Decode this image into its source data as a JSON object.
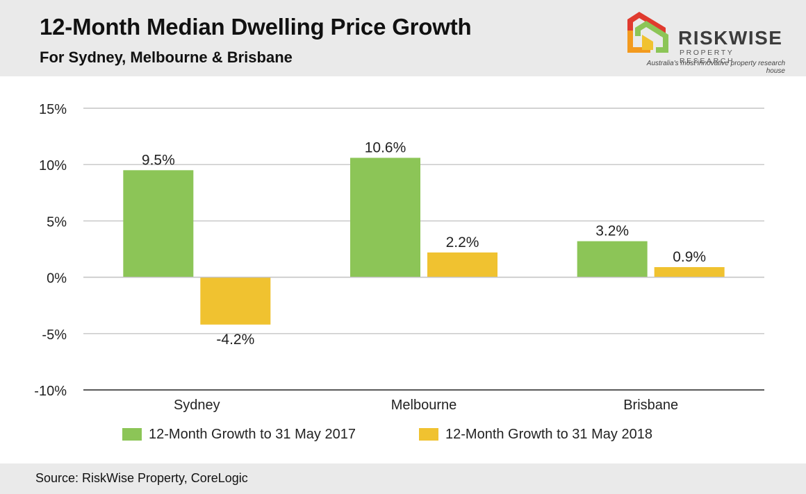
{
  "header": {
    "title": "12-Month Median Dwelling Price Growth",
    "subtitle": "For Sydney, Melbourne & Brisbane"
  },
  "logo": {
    "name": "RISKWISE",
    "sub": "PROPERTY RESEARCH",
    "tagline": "Australia's most innovative property research house"
  },
  "chart_data": {
    "type": "bar",
    "title": "12-Month Median Dwelling Price Growth",
    "subtitle": "For Sydney, Melbourne & Brisbane",
    "categories": [
      "Sydney",
      "Melbourne",
      "Brisbane"
    ],
    "series": [
      {
        "name": "12-Month Growth to 31 May 2017",
        "values": [
          9.5,
          10.6,
          3.2
        ],
        "labels": [
          "9.5%",
          "10.6%",
          "3.2%"
        ],
        "color": "#8cc557"
      },
      {
        "name": "12-Month Growth to 31 May 2018",
        "values": [
          -4.2,
          2.2,
          0.9
        ],
        "labels": [
          "-4.2%",
          "2.2%",
          "0.9%"
        ],
        "color": "#f0c230"
      }
    ],
    "ylim": [
      -10,
      15
    ],
    "yticks": [
      15,
      10,
      5,
      0,
      -5,
      -10
    ],
    "ytick_labels": [
      "15%",
      "10%",
      "5%",
      "0%",
      "-5%",
      "-10%"
    ],
    "xlabel": "",
    "ylabel": "",
    "grid": true,
    "legend_position": "bottom"
  },
  "footer": {
    "source": "Source: RiskWise Property, CoreLogic"
  }
}
